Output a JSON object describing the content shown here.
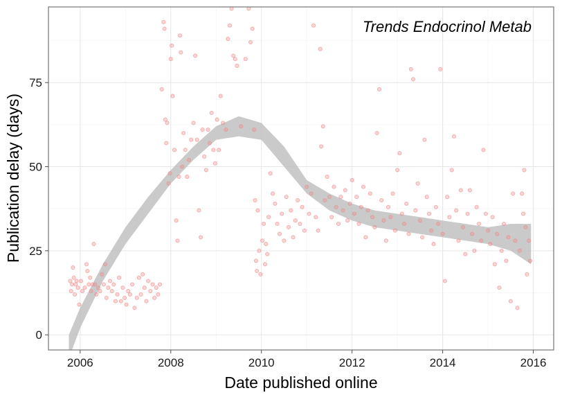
{
  "chart_data": {
    "type": "scatter",
    "title": "",
    "annotation": "Trends Endocrinol Metab",
    "xlabel": "Date published online",
    "ylabel": "Publication delay (days)",
    "xlim": [
      2005.3,
      2016.45
    ],
    "ylim": [
      -4.5,
      97.5
    ],
    "x_ticks": [
      2006,
      2008,
      2010,
      2012,
      2014,
      2016
    ],
    "y_ticks": [
      0,
      25,
      50,
      75
    ],
    "grid": true,
    "point_color": "#f08a8a",
    "smooth_band_color": "#bdbdbd",
    "points": [
      [
        2005.78,
        16
      ],
      [
        2005.8,
        13
      ],
      [
        2005.82,
        15
      ],
      [
        2005.84,
        20
      ],
      [
        2005.86,
        17
      ],
      [
        2005.88,
        12
      ],
      [
        2005.9,
        15
      ],
      [
        2005.92,
        16
      ],
      [
        2005.95,
        14
      ],
      [
        2005.98,
        9
      ],
      [
        2006.02,
        16
      ],
      [
        2006.05,
        13
      ],
      [
        2006.1,
        14
      ],
      [
        2006.14,
        21
      ],
      [
        2006.16,
        19
      ],
      [
        2006.19,
        15
      ],
      [
        2006.22,
        17
      ],
      [
        2006.24,
        13
      ],
      [
        2006.27,
        15
      ],
      [
        2006.3,
        27
      ],
      [
        2006.33,
        15
      ],
      [
        2006.36,
        12
      ],
      [
        2006.4,
        14
      ],
      [
        2006.44,
        13
      ],
      [
        2006.48,
        18
      ],
      [
        2006.52,
        15
      ],
      [
        2006.55,
        21
      ],
      [
        2006.58,
        11
      ],
      [
        2006.62,
        14
      ],
      [
        2006.66,
        16
      ],
      [
        2006.7,
        13
      ],
      [
        2006.74,
        15
      ],
      [
        2006.78,
        10
      ],
      [
        2006.82,
        12
      ],
      [
        2006.86,
        17
      ],
      [
        2006.9,
        10
      ],
      [
        2006.94,
        14
      ],
      [
        2006.98,
        11
      ],
      [
        2007.02,
        9
      ],
      [
        2007.06,
        13
      ],
      [
        2007.1,
        12
      ],
      [
        2007.15,
        15
      ],
      [
        2007.2,
        8
      ],
      [
        2007.25,
        11
      ],
      [
        2007.3,
        17
      ],
      [
        2007.34,
        12
      ],
      [
        2007.38,
        18
      ],
      [
        2007.42,
        14
      ],
      [
        2007.46,
        10
      ],
      [
        2007.5,
        16
      ],
      [
        2007.55,
        13
      ],
      [
        2007.6,
        15
      ],
      [
        2007.64,
        11
      ],
      [
        2007.68,
        14
      ],
      [
        2007.72,
        12
      ],
      [
        2007.76,
        15
      ],
      [
        2007.8,
        73
      ],
      [
        2007.84,
        93
      ],
      [
        2007.86,
        91
      ],
      [
        2007.88,
        64
      ],
      [
        2007.9,
        57
      ],
      [
        2007.92,
        63
      ],
      [
        2007.95,
        45
      ],
      [
        2007.98,
        48
      ],
      [
        2008.0,
        82
      ],
      [
        2008.02,
        86
      ],
      [
        2008.04,
        71
      ],
      [
        2008.08,
        55
      ],
      [
        2008.12,
        34
      ],
      [
        2008.15,
        28
      ],
      [
        2008.18,
        47
      ],
      [
        2008.2,
        89
      ],
      [
        2008.22,
        84
      ],
      [
        2008.25,
        50
      ],
      [
        2008.28,
        60
      ],
      [
        2008.32,
        55
      ],
      [
        2008.36,
        47
      ],
      [
        2008.4,
        52
      ],
      [
        2008.45,
        58
      ],
      [
        2008.5,
        63
      ],
      [
        2008.54,
        83
      ],
      [
        2008.58,
        58
      ],
      [
        2008.62,
        37
      ],
      [
        2008.66,
        29
      ],
      [
        2008.7,
        61
      ],
      [
        2008.74,
        53
      ],
      [
        2008.78,
        49
      ],
      [
        2008.82,
        61
      ],
      [
        2008.86,
        57
      ],
      [
        2008.9,
        66
      ],
      [
        2008.94,
        55
      ],
      [
        2008.98,
        51
      ],
      [
        2009.02,
        64
      ],
      [
        2009.06,
        55
      ],
      [
        2009.1,
        71
      ],
      [
        2009.15,
        63
      ],
      [
        2009.22,
        61
      ],
      [
        2009.26,
        88
      ],
      [
        2009.3,
        92
      ],
      [
        2009.34,
        97
      ],
      [
        2009.38,
        83
      ],
      [
        2009.42,
        82
      ],
      [
        2009.46,
        80
      ],
      [
        2009.55,
        62
      ],
      [
        2009.65,
        82
      ],
      [
        2009.72,
        97
      ],
      [
        2009.76,
        87
      ],
      [
        2009.8,
        91
      ],
      [
        2009.84,
        61
      ],
      [
        2009.86,
        40
      ],
      [
        2009.88,
        22
      ],
      [
        2009.9,
        19
      ],
      [
        2009.92,
        37
      ],
      [
        2009.95,
        25
      ],
      [
        2009.98,
        18
      ],
      [
        2010.02,
        28
      ],
      [
        2010.05,
        33
      ],
      [
        2010.08,
        21
      ],
      [
        2010.1,
        27
      ],
      [
        2010.13,
        24
      ],
      [
        2010.16,
        35
      ],
      [
        2010.2,
        48
      ],
      [
        2010.25,
        42
      ],
      [
        2010.3,
        39
      ],
      [
        2010.35,
        33
      ],
      [
        2010.4,
        30
      ],
      [
        2010.45,
        36
      ],
      [
        2010.5,
        28
      ],
      [
        2010.55,
        41
      ],
      [
        2010.6,
        32
      ],
      [
        2010.65,
        37
      ],
      [
        2010.7,
        29
      ],
      [
        2010.75,
        34
      ],
      [
        2010.8,
        40
      ],
      [
        2010.85,
        33
      ],
      [
        2010.9,
        38
      ],
      [
        2010.95,
        31
      ],
      [
        2011.0,
        44
      ],
      [
        2011.05,
        36
      ],
      [
        2011.1,
        42
      ],
      [
        2011.15,
        92
      ],
      [
        2011.2,
        35
      ],
      [
        2011.25,
        31
      ],
      [
        2011.3,
        85
      ],
      [
        2011.32,
        56
      ],
      [
        2011.36,
        62
      ],
      [
        2011.4,
        40
      ],
      [
        2011.45,
        47
      ],
      [
        2011.5,
        41
      ],
      [
        2011.55,
        35
      ],
      [
        2011.6,
        44
      ],
      [
        2011.65,
        38
      ],
      [
        2011.7,
        33
      ],
      [
        2011.75,
        41
      ],
      [
        2011.8,
        37
      ],
      [
        2011.85,
        43
      ],
      [
        2011.9,
        34
      ],
      [
        2011.95,
        39
      ],
      [
        2012.0,
        46
      ],
      [
        2012.05,
        36
      ],
      [
        2012.1,
        41
      ],
      [
        2012.15,
        33
      ],
      [
        2012.2,
        38
      ],
      [
        2012.25,
        44
      ],
      [
        2012.3,
        29
      ],
      [
        2012.35,
        37
      ],
      [
        2012.4,
        42
      ],
      [
        2012.45,
        35
      ],
      [
        2012.5,
        32
      ],
      [
        2012.55,
        60
      ],
      [
        2012.6,
        73
      ],
      [
        2012.65,
        40
      ],
      [
        2012.7,
        34
      ],
      [
        2012.75,
        28
      ],
      [
        2012.8,
        38
      ],
      [
        2012.85,
        35
      ],
      [
        2012.9,
        42
      ],
      [
        2012.95,
        31
      ],
      [
        2013.0,
        49
      ],
      [
        2013.05,
        54
      ],
      [
        2013.1,
        36
      ],
      [
        2013.15,
        33
      ],
      [
        2013.2,
        39
      ],
      [
        2013.25,
        30
      ],
      [
        2013.3,
        79
      ],
      [
        2013.35,
        76
      ],
      [
        2013.4,
        37
      ],
      [
        2013.45,
        45
      ],
      [
        2013.5,
        34
      ],
      [
        2013.55,
        29
      ],
      [
        2013.6,
        58
      ],
      [
        2013.65,
        41
      ],
      [
        2013.7,
        36
      ],
      [
        2013.75,
        31
      ],
      [
        2013.8,
        27
      ],
      [
        2013.85,
        38
      ],
      [
        2013.9,
        33
      ],
      [
        2013.95,
        79
      ],
      [
        2014.0,
        30
      ],
      [
        2014.05,
        16
      ],
      [
        2014.1,
        41
      ],
      [
        2014.15,
        35
      ],
      [
        2014.2,
        49
      ],
      [
        2014.25,
        59
      ],
      [
        2014.3,
        37
      ],
      [
        2014.35,
        28
      ],
      [
        2014.4,
        43
      ],
      [
        2014.45,
        32
      ],
      [
        2014.5,
        24
      ],
      [
        2014.55,
        36
      ],
      [
        2014.6,
        43
      ],
      [
        2014.65,
        30
      ],
      [
        2014.7,
        25
      ],
      [
        2014.75,
        38
      ],
      [
        2014.8,
        33
      ],
      [
        2014.85,
        28
      ],
      [
        2014.9,
        55
      ],
      [
        2014.95,
        36
      ],
      [
        2015.0,
        31
      ],
      [
        2015.05,
        27
      ],
      [
        2015.1,
        35
      ],
      [
        2015.15,
        21
      ],
      [
        2015.2,
        30
      ],
      [
        2015.25,
        14
      ],
      [
        2015.3,
        25
      ],
      [
        2015.35,
        33
      ],
      [
        2015.4,
        22
      ],
      [
        2015.45,
        29
      ],
      [
        2015.5,
        10
      ],
      [
        2015.55,
        42
      ],
      [
        2015.6,
        28
      ],
      [
        2015.65,
        8
      ],
      [
        2015.7,
        25
      ],
      [
        2015.75,
        42
      ],
      [
        2015.78,
        36
      ],
      [
        2015.8,
        49
      ],
      [
        2015.83,
        32
      ],
      [
        2015.86,
        18
      ],
      [
        2015.9,
        28
      ],
      [
        2015.93,
        22
      ]
    ],
    "smooth_band": {
      "x": [
        2005.75,
        2006.0,
        2006.5,
        2007.0,
        2007.5,
        2008.0,
        2008.5,
        2009.0,
        2009.5,
        2010.0,
        2010.5,
        2011.0,
        2011.5,
        2012.0,
        2012.5,
        2013.0,
        2013.5,
        2014.0,
        2014.5,
        2015.0,
        2015.5,
        2015.95
      ],
      "upper": [
        0,
        8,
        21,
        32,
        41,
        49,
        56,
        62,
        65,
        63,
        56,
        46,
        42,
        39,
        37,
        36,
        35,
        34,
        33,
        32,
        33,
        33
      ],
      "lower": [
        -7,
        2,
        16,
        27,
        36,
        45,
        52,
        58,
        59,
        58,
        50,
        42,
        37,
        34,
        32,
        31,
        30,
        29,
        28,
        27,
        25,
        21
      ]
    }
  }
}
